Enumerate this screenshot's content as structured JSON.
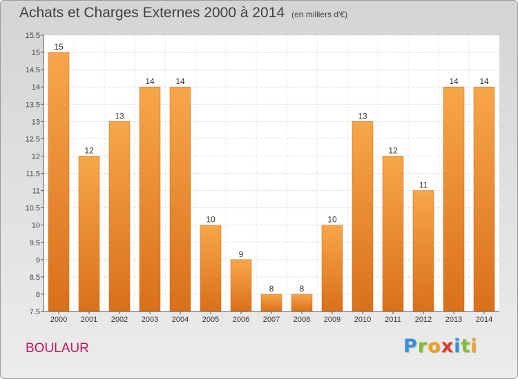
{
  "chart_data": {
    "type": "bar",
    "title": "Achats et Charges Externes 2000 à 2014",
    "subtitle": "(en milliers d'€)",
    "categories": [
      "2000",
      "2001",
      "2002",
      "2003",
      "2004",
      "2005",
      "2006",
      "2007",
      "2008",
      "2009",
      "2010",
      "2011",
      "2012",
      "2013",
      "2014"
    ],
    "values": [
      15,
      12,
      13,
      14,
      14,
      10,
      9,
      8,
      8,
      10,
      13,
      12,
      11,
      14,
      14
    ],
    "data_labels": [
      "15",
      "12",
      "13",
      "14",
      "14",
      "10",
      "9",
      "8",
      "8",
      "10",
      "13",
      "12",
      "11",
      "14",
      "14"
    ],
    "y_ticks": [
      "7.5",
      "8",
      "8.5",
      "9",
      "9.5",
      "10",
      "10.5",
      "11",
      "11.5",
      "12",
      "12.5",
      "13",
      "13.5",
      "14",
      "14.5",
      "15",
      "15.5"
    ],
    "ylim": [
      7.5,
      15.5
    ],
    "grid": true,
    "bar_color": "#f39c3a",
    "xlabel": "",
    "ylabel": ""
  },
  "footer": {
    "city": "BOULAUR",
    "logo_letters": [
      {
        "ch": "P",
        "color": "#3a8fd6"
      },
      {
        "ch": "r",
        "color": "#7cbf2f"
      },
      {
        "ch": "o",
        "color": "#f0a020"
      },
      {
        "ch": "x",
        "color": "#e03a2e"
      },
      {
        "ch": "i",
        "color": "#3a8fd6"
      },
      {
        "ch": "t",
        "color": "#7cbf2f"
      },
      {
        "ch": "i",
        "color": "#f0a020"
      }
    ]
  }
}
